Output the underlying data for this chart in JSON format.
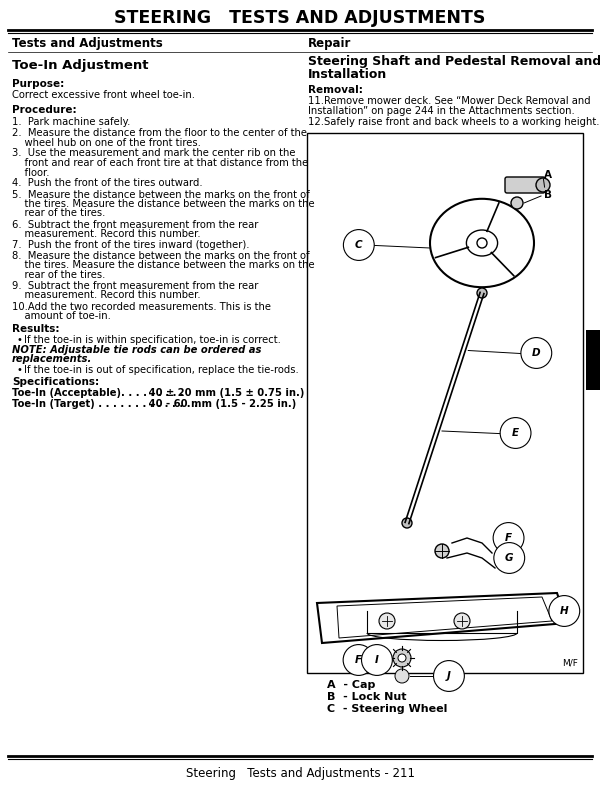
{
  "page_title": "STEERING   TESTS AND ADJUSTMENTS",
  "left_header": "Tests and Adjustments",
  "right_header": "Repair",
  "left_section": "Toe-In Adjustment",
  "right_section_line1": "Steering Shaft and Pedestal Removal and",
  "right_section_line2": "Installation",
  "purpose_label": "Purpose:",
  "purpose_text": "Correct excessive front wheel toe-in.",
  "procedure_label": "Procedure:",
  "procedure_steps": [
    "1.  Park machine safely.",
    "2.  Measure the distance from the floor to the center of the\n    wheel hub on one of the front tires.",
    "3.  Use the measurement and mark the center rib on the\n    front and rear of each front tire at that distance from the\n    floor.",
    "4.  Push the front of the tires outward.",
    "5.  Measure the distance between the marks on the front of\n    the tires. Measure the distance between the marks on the\n    rear of the tires.",
    "6.  Subtract the front measurement from the rear\n    measurement. Record this number.",
    "7.  Push the front of the tires inward (together).",
    "8.  Measure the distance between the marks on the front of\n    the tires. Measure the distance between the marks on the\n    rear of the tires.",
    "9.  Subtract the front measurement from the rear\n    measurement. Record this number.",
    "10.Add the two recorded measurements. This is the\n    amount of toe-in."
  ],
  "results_label": "Results:",
  "results_bullet1": "If the toe-in is within specification, toe-in is correct.",
  "note_text_line1": "NOTE: Adjustable tie rods can be ordered as",
  "note_text_line2": "replacements.",
  "results_bullet2": "If the toe-in is out of specification, replace the tie-rods.",
  "spec_label": "Specifications:",
  "spec1_bold": "Toe-In (Acceptable). . . . . . . . . ",
  "spec1_val": " 40 ± 20 mm (1.5 ± 0.75 in.)",
  "spec2_bold": "Toe-In (Target) . . . . . . . . . . . . . .",
  "spec2_val": " 40 - 60 mm (1.5 - 2.25 in.)",
  "removal_label": "Removal:",
  "removal_step1_line1": "11.Remove mower deck. See “Mower Deck Removal and",
  "removal_step1_line2": "Installation” on page 244 in the Attachments section.",
  "removal_step2": "12.Safely raise front and back wheels to a working height.",
  "diagram_label": "M/F",
  "legend_A": "A  - Cap",
  "legend_B": "B  - Lock Nut",
  "legend_C": "C  - Steering Wheel",
  "footer_text": "Steering   Tests and Adjustments - 211",
  "bg_color": "#ffffff",
  "text_color": "#000000"
}
